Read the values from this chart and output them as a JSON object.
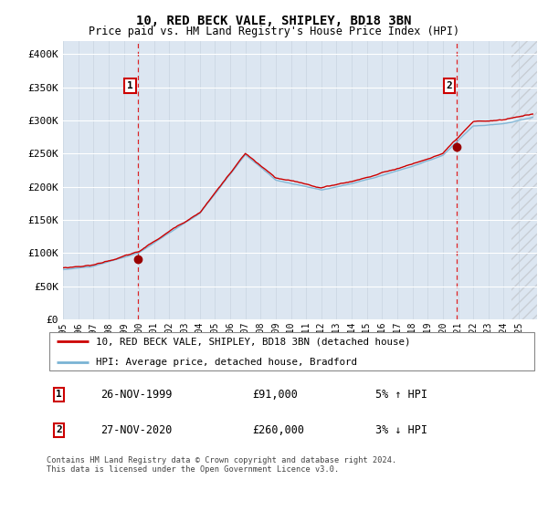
{
  "title": "10, RED BECK VALE, SHIPLEY, BD18 3BN",
  "subtitle": "Price paid vs. HM Land Registry's House Price Index (HPI)",
  "background_color": "#dce6f1",
  "plot_bg_color": "#dce6f1",
  "ylim": [
    0,
    420000
  ],
  "yticks": [
    0,
    50000,
    100000,
    150000,
    200000,
    250000,
    300000,
    350000,
    400000
  ],
  "ytick_labels": [
    "£0",
    "£50K",
    "£100K",
    "£150K",
    "£200K",
    "£250K",
    "£300K",
    "£350K",
    "£400K"
  ],
  "hpi_color": "#7ab3d4",
  "price_color": "#cc0000",
  "marker_color": "#990000",
  "legend_entries": [
    "10, RED BECK VALE, SHIPLEY, BD18 3BN (detached house)",
    "HPI: Average price, detached house, Bradford"
  ],
  "annotation1": {
    "label": "1",
    "date": "26-NOV-1999",
    "price": "£91,000",
    "hpi": "5% ↑ HPI"
  },
  "annotation2": {
    "label": "2",
    "date": "27-NOV-2020",
    "price": "£260,000",
    "hpi": "3% ↓ HPI"
  },
  "footer": "Contains HM Land Registry data © Crown copyright and database right 2024.\nThis data is licensed under the Open Government Licence v3.0.",
  "xstart": 1995,
  "xend": 2026
}
